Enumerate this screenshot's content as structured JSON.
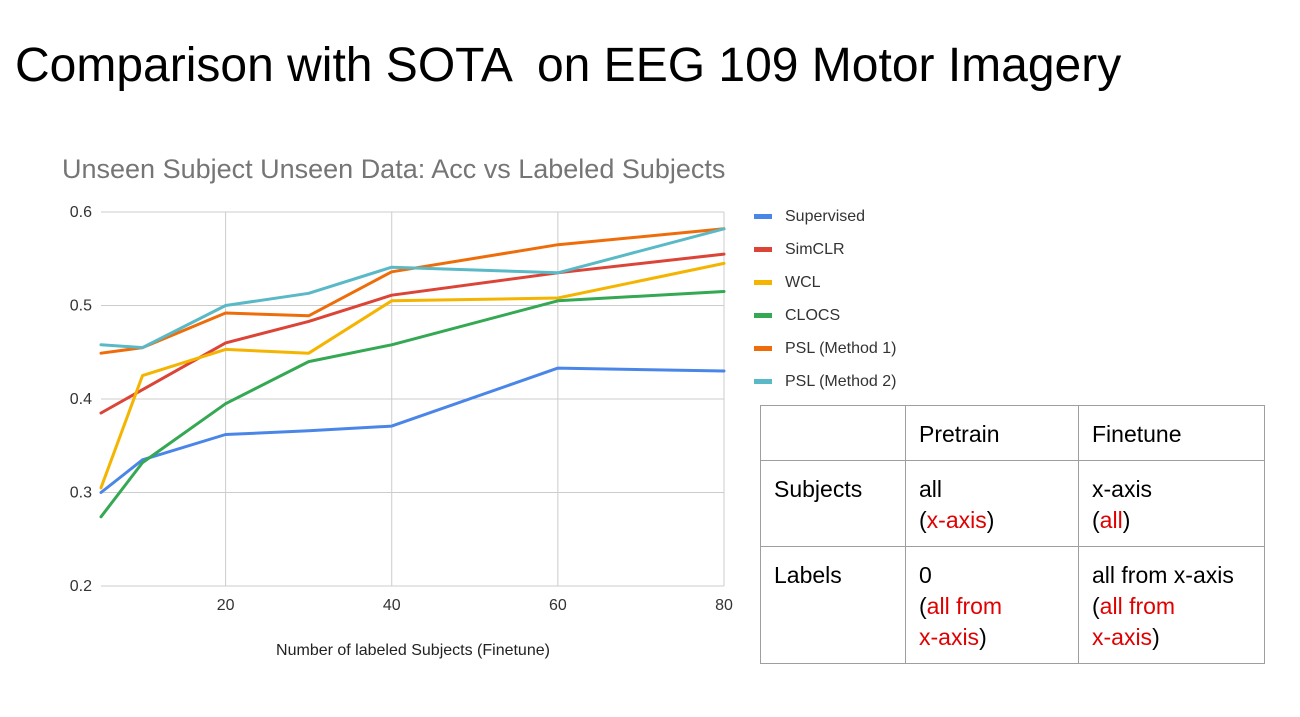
{
  "slide": {
    "title": "Comparison with SOTA  on EEG 109 Motor Imagery"
  },
  "chart_data": {
    "type": "line",
    "title": "Unseen Subject Unseen Data: Acc vs Labeled Subjects",
    "xlabel": "Number of labeled Subjects (Finetune)",
    "ylabel": "",
    "xlim": [
      5,
      80
    ],
    "ylim": [
      0.2,
      0.6
    ],
    "xticks": [
      20,
      40,
      60,
      80
    ],
    "xtick_labels": [
      "20",
      "40",
      "60",
      "80"
    ],
    "yticks": [
      0.2,
      0.3,
      0.4,
      0.5,
      0.6
    ],
    "ytick_labels": [
      "0.2",
      "0.3",
      "0.4",
      "0.5",
      "0.6"
    ],
    "grid": true,
    "legend_position": "right",
    "x": [
      5,
      10,
      20,
      30,
      40,
      60,
      80
    ],
    "series": [
      {
        "name": "Supervised",
        "color": "#4a86e8",
        "values": [
          0.3,
          0.335,
          0.362,
          0.366,
          0.371,
          0.433,
          0.43
        ]
      },
      {
        "name": "SimCLR",
        "color": "#db4437",
        "values": [
          0.385,
          0.41,
          0.46,
          0.483,
          0.511,
          0.535,
          0.555
        ]
      },
      {
        "name": "WCL",
        "color": "#f4b400",
        "values": [
          0.305,
          0.425,
          0.453,
          0.449,
          0.505,
          0.508,
          0.545
        ]
      },
      {
        "name": "CLOCS",
        "color": "#34a853",
        "values": [
          0.274,
          0.332,
          0.395,
          0.44,
          0.458,
          0.505,
          0.515
        ]
      },
      {
        "name": "PSL (Method 1)",
        "color": "#ee6d0a",
        "values": [
          0.449,
          0.455,
          0.492,
          0.489,
          0.536,
          0.565,
          0.582
        ]
      },
      {
        "name": "PSL (Method 2)",
        "color": "#5ab9c6",
        "values": [
          0.458,
          0.455,
          0.5,
          0.513,
          0.541,
          0.535,
          0.582
        ]
      }
    ]
  },
  "table": {
    "header": [
      "",
      "Pretrain",
      "Finetune"
    ],
    "rows": [
      {
        "label": "Subjects",
        "pretrain": {
          "main": "all",
          "paren": "x-axis"
        },
        "finetune": {
          "main": "x-axis",
          "paren": "all"
        }
      },
      {
        "label": "Labels",
        "pretrain": {
          "main": "0",
          "paren_line1": "all from",
          "paren_line2": "x-axis"
        },
        "finetune": {
          "main": "all from x-axis",
          "paren_line1": "all from",
          "paren_line2": "x-axis"
        }
      }
    ]
  },
  "colors": {
    "grid": "#cccccc",
    "axis": "#333333",
    "chart_title": "#757575",
    "table_border": "#9e9e9e",
    "table_accent": "#e00000"
  }
}
